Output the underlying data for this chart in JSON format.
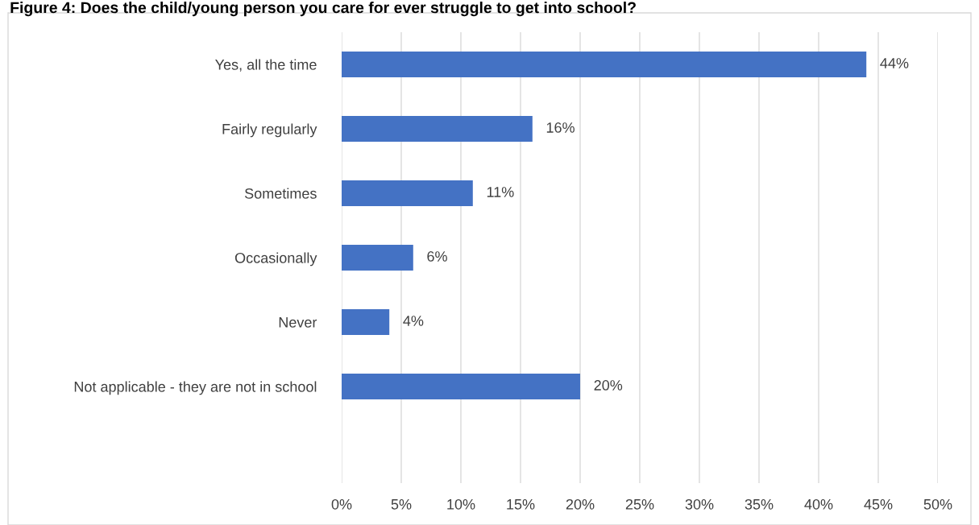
{
  "chart_data": {
    "type": "bar",
    "orientation": "horizontal",
    "title": "Figure 4: Does the child/young person you care for ever struggle to get into school?",
    "categories": [
      "Yes, all the time",
      "Fairly regularly",
      "Sometimes",
      "Occasionally",
      "Never",
      "Not applicable - they are not in school",
      null
    ],
    "values": [
      44,
      16,
      11,
      6,
      4,
      20,
      null
    ],
    "value_labels": [
      "44%",
      "16%",
      "11%",
      "6%",
      "4%",
      "20%",
      null
    ],
    "color": "#4472c4",
    "xlim": [
      0,
      50
    ],
    "xticks": [
      {
        "value": 0,
        "label": "0%"
      },
      {
        "value": 5,
        "label": "5%"
      },
      {
        "value": 10,
        "label": "10%"
      },
      {
        "value": 15,
        "label": "15%"
      },
      {
        "value": 20,
        "label": "20%"
      },
      {
        "value": 25,
        "label": "25%"
      },
      {
        "value": 30,
        "label": "30%"
      },
      {
        "value": 35,
        "label": "35%"
      },
      {
        "value": 40,
        "label": "40%"
      },
      {
        "value": 45,
        "label": "45%"
      },
      {
        "value": 50,
        "label": "50%"
      }
    ],
    "grid": "x",
    "legend": false
  }
}
